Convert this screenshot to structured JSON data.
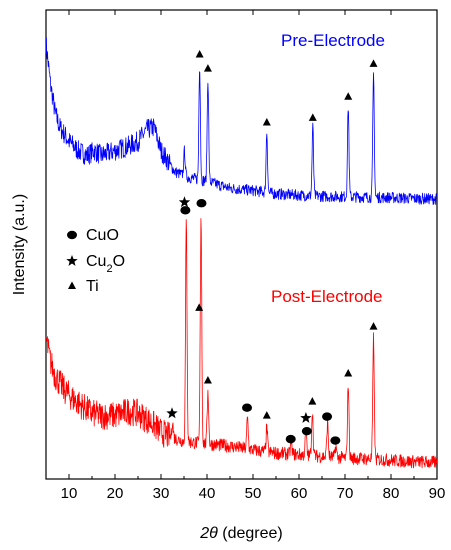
{
  "chart_data": {
    "type": "line",
    "xlabel_symbol": "2θ",
    "xlabel_unit": "(degree)",
    "ylabel": "Intensity (a.u.)",
    "xlim": [
      5,
      90
    ],
    "xticks": [
      10,
      20,
      30,
      40,
      50,
      60,
      70,
      80,
      90
    ],
    "ylim": [
      0,
      1
    ],
    "y_ticks_labeled": false,
    "grid": false,
    "legend": {
      "placement": "middle-left",
      "entries": [
        {
          "marker": "circle",
          "text": "CuO",
          "sub": "",
          "suffix": ""
        },
        {
          "marker": "star",
          "text": "Cu",
          "sub": "2",
          "suffix": "O"
        },
        {
          "marker": "triangle",
          "text": "Ti",
          "sub": "",
          "suffix": ""
        }
      ]
    },
    "series": [
      {
        "name": "Pre-Electrode",
        "color": "#0000ff",
        "background": [
          [
            5,
            0.93
          ],
          [
            6,
            0.84
          ],
          [
            7,
            0.78
          ],
          [
            8,
            0.75
          ],
          [
            10,
            0.72
          ],
          [
            12,
            0.7
          ],
          [
            14,
            0.69
          ],
          [
            15.5,
            0.7
          ],
          [
            17,
            0.69
          ],
          [
            20,
            0.7
          ],
          [
            23,
            0.71
          ],
          [
            25,
            0.72
          ],
          [
            27,
            0.745
          ],
          [
            28.5,
            0.75
          ],
          [
            30,
            0.7
          ],
          [
            33,
            0.655
          ],
          [
            36,
            0.643
          ],
          [
            40,
            0.635
          ],
          [
            45,
            0.62
          ],
          [
            50,
            0.615
          ],
          [
            55,
            0.608
          ],
          [
            60,
            0.605
          ],
          [
            65,
            0.603
          ],
          [
            70,
            0.602
          ],
          [
            75,
            0.601
          ],
          [
            80,
            0.6
          ],
          [
            85,
            0.598
          ],
          [
            90,
            0.597
          ]
        ],
        "peaks": [
          {
            "x": 35.1,
            "y": 0.7,
            "label": ""
          },
          {
            "x": 38.4,
            "y": 0.885,
            "label": "Ti"
          },
          {
            "x": 40.2,
            "y": 0.855,
            "label": "Ti"
          },
          {
            "x": 53.0,
            "y": 0.74,
            "label": "Ti"
          },
          {
            "x": 63.0,
            "y": 0.75,
            "label": "Ti"
          },
          {
            "x": 70.7,
            "y": 0.795,
            "label": "Ti"
          },
          {
            "x": 76.2,
            "y": 0.865,
            "label": "Ti"
          }
        ]
      },
      {
        "name": "Post-Electrode",
        "color": "#ff0000",
        "background": [
          [
            5,
            0.3
          ],
          [
            6,
            0.25
          ],
          [
            7,
            0.22
          ],
          [
            9,
            0.19
          ],
          [
            11,
            0.17
          ],
          [
            13,
            0.155
          ],
          [
            15,
            0.14
          ],
          [
            17,
            0.135
          ],
          [
            20,
            0.135
          ],
          [
            23,
            0.145
          ],
          [
            25,
            0.14
          ],
          [
            28,
            0.12
          ],
          [
            30,
            0.1
          ],
          [
            32,
            0.09
          ],
          [
            35,
            0.08
          ],
          [
            40,
            0.075
          ],
          [
            45,
            0.07
          ],
          [
            50,
            0.062
          ],
          [
            55,
            0.055
          ],
          [
            60,
            0.052
          ],
          [
            65,
            0.048
          ],
          [
            70,
            0.045
          ],
          [
            75,
            0.043
          ],
          [
            80,
            0.04
          ],
          [
            85,
            0.037
          ],
          [
            90,
            0.035
          ]
        ],
        "peaks": [
          {
            "x": 32.5,
            "y": 0.12,
            "label": "Cu2O"
          },
          {
            "x": 35.5,
            "y": 0.55,
            "label": "CuO"
          },
          {
            "x": 38.7,
            "y": 0.565,
            "label": "CuO"
          },
          {
            "x": 40.2,
            "y": 0.19,
            "label": "Ti"
          },
          {
            "x": 48.8,
            "y": 0.13,
            "label": "CuO"
          },
          {
            "x": 53.0,
            "y": 0.11,
            "label": "Ti"
          },
          {
            "x": 58.3,
            "y": 0.08,
            "label": "CuO"
          },
          {
            "x": 61.5,
            "y": 0.1,
            "label": "CuO"
          },
          {
            "x": 62.9,
            "y": 0.145,
            "label": "Ti"
          },
          {
            "x": 66.2,
            "y": 0.12,
            "label": "CuO"
          },
          {
            "x": 68.0,
            "y": 0.07,
            "label": "CuO"
          },
          {
            "x": 70.7,
            "y": 0.205,
            "label": "Ti"
          },
          {
            "x": 76.2,
            "y": 0.3,
            "label": "Ti"
          }
        ]
      }
    ],
    "annotations": [
      {
        "type": "circle",
        "x": 35.3,
        "y": 0.573
      },
      {
        "type": "star",
        "x": 35.1,
        "y": 0.59
      },
      {
        "type": "circle",
        "x": 38.8,
        "y": 0.588
      },
      {
        "type": "triangle",
        "x": 38.3,
        "y": 0.365
      },
      {
        "type": "triangle",
        "x": 40.2,
        "y": 0.21
      },
      {
        "type": "star",
        "x": 32.4,
        "y": 0.14
      },
      {
        "type": "circle",
        "x": 48.7,
        "y": 0.152
      },
      {
        "type": "triangle",
        "x": 53.0,
        "y": 0.135
      },
      {
        "type": "circle",
        "x": 58.2,
        "y": 0.085
      },
      {
        "type": "star",
        "x": 61.5,
        "y": 0.13
      },
      {
        "type": "circle",
        "x": 61.7,
        "y": 0.102
      },
      {
        "type": "triangle",
        "x": 62.9,
        "y": 0.165
      },
      {
        "type": "circle",
        "x": 66.1,
        "y": 0.133
      },
      {
        "type": "circle",
        "x": 67.9,
        "y": 0.082
      },
      {
        "type": "triangle",
        "x": 70.7,
        "y": 0.225
      },
      {
        "type": "triangle",
        "x": 76.2,
        "y": 0.325
      },
      {
        "type": "triangle",
        "x": 38.4,
        "y": 0.905
      },
      {
        "type": "triangle",
        "x": 40.2,
        "y": 0.875
      },
      {
        "type": "triangle",
        "x": 53.0,
        "y": 0.76
      },
      {
        "type": "triangle",
        "x": 63.0,
        "y": 0.77
      },
      {
        "type": "triangle",
        "x": 70.7,
        "y": 0.815
      },
      {
        "type": "triangle",
        "x": 76.2,
        "y": 0.885
      }
    ]
  }
}
